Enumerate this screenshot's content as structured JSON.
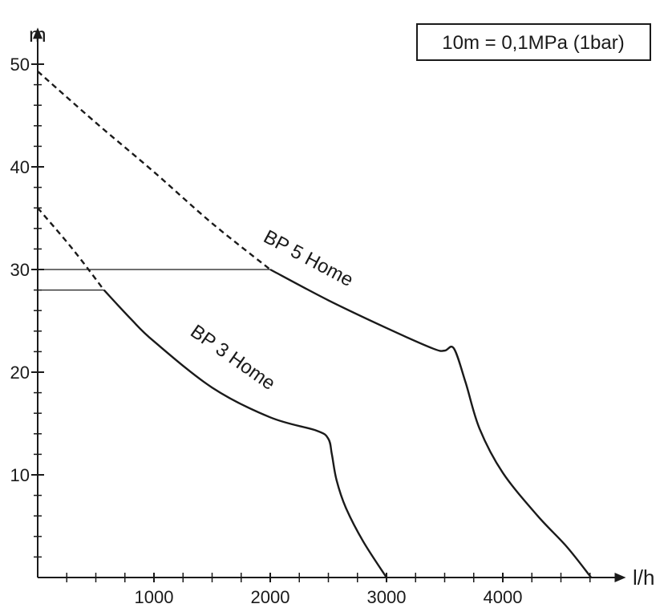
{
  "chart_data": {
    "type": "line",
    "title": "",
    "xlabel": "l/h",
    "ylabel": "m",
    "xlim": [
      0,
      4900
    ],
    "ylim": [
      0,
      52
    ],
    "x_ticks": [
      "1000",
      "2000",
      "3000",
      "4000"
    ],
    "y_ticks": [
      "10",
      "20",
      "30",
      "40",
      "50"
    ],
    "grid": false,
    "annotation": "10m = 0,1MPa (1bar)",
    "series": [
      {
        "name": "BP 5 Home",
        "dashed_until_x": 2000,
        "x": [
          0,
          500,
          1000,
          1500,
          2000,
          2500,
          3000,
          3400,
          3500,
          3580,
          3680,
          3800,
          4000,
          4300,
          4550,
          4760
        ],
        "y": [
          49.3,
          44.3,
          39.5,
          34.5,
          30.0,
          27.0,
          24.3,
          22.3,
          22.1,
          22.3,
          19.0,
          14.5,
          10.2,
          6.0,
          3.0,
          0.0
        ]
      },
      {
        "name": "BP 3 Home",
        "dashed_until_x": 570,
        "x": [
          0,
          300,
          570,
          800,
          1000,
          1500,
          2000,
          2400,
          2500,
          2530,
          2570,
          2650,
          2800,
          3000
        ],
        "y": [
          36.0,
          32.0,
          28.0,
          25.2,
          23.0,
          18.5,
          15.6,
          14.3,
          13.5,
          12.0,
          9.5,
          6.8,
          3.5,
          0.0
        ]
      }
    ],
    "reference_lines": [
      {
        "y": 30,
        "x_end": 2000
      },
      {
        "y": 28,
        "x_end": 570
      }
    ]
  },
  "colors": {
    "line": "#1a1a1a",
    "background": "#ffffff"
  }
}
